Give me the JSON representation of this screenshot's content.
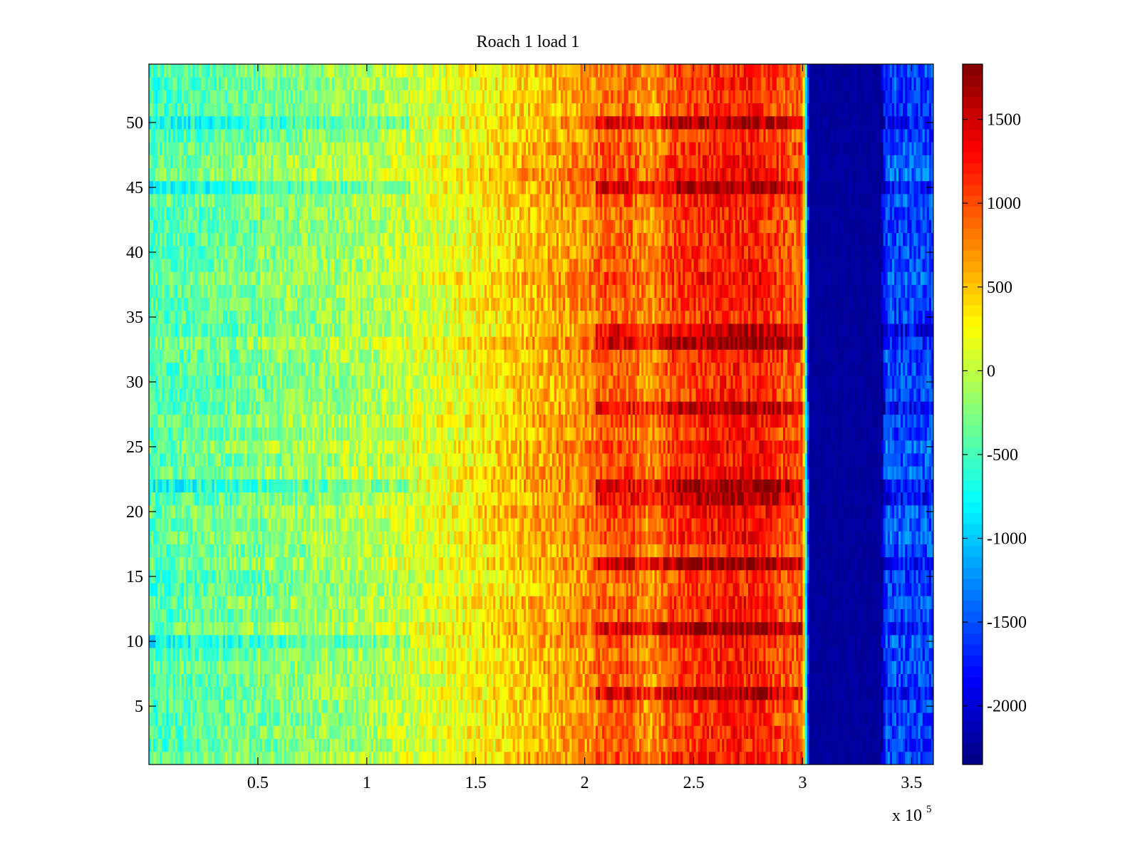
{
  "chart_data": {
    "type": "heatmap",
    "title": "Roach 1 load 1",
    "xlabel": "",
    "ylabel": "",
    "x_exponent_label": "x 10",
    "x_exponent_power": "5",
    "xlim": [
      0,
      3.6
    ],
    "ylim": [
      0.5,
      54.5
    ],
    "x_ticks": [
      {
        "value": 0.5,
        "label": "0.5"
      },
      {
        "value": 1,
        "label": "1"
      },
      {
        "value": 1.5,
        "label": "1.5"
      },
      {
        "value": 2,
        "label": "2"
      },
      {
        "value": 2.5,
        "label": "2.5"
      },
      {
        "value": 3,
        "label": "3"
      },
      {
        "value": 3.5,
        "label": "3.5"
      }
    ],
    "y_ticks": [
      {
        "value": 5,
        "label": "5"
      },
      {
        "value": 10,
        "label": "10"
      },
      {
        "value": 15,
        "label": "15"
      },
      {
        "value": 20,
        "label": "20"
      },
      {
        "value": 25,
        "label": "25"
      },
      {
        "value": 30,
        "label": "30"
      },
      {
        "value": 35,
        "label": "35"
      },
      {
        "value": 40,
        "label": "40"
      },
      {
        "value": 45,
        "label": "45"
      },
      {
        "value": 50,
        "label": "50"
      }
    ],
    "n_rows": 54,
    "colorbar": {
      "colormap": "jet",
      "clim": [
        -2350,
        1830
      ],
      "ticks": [
        {
          "value": 1500,
          "label": "1500"
        },
        {
          "value": 1000,
          "label": "1000"
        },
        {
          "value": 500,
          "label": "500"
        },
        {
          "value": 0,
          "label": "0"
        },
        {
          "value": -500,
          "label": "-500"
        },
        {
          "value": -1000,
          "label": "-1000"
        },
        {
          "value": -1500,
          "label": "-1500"
        },
        {
          "value": -2000,
          "label": "-2000"
        }
      ]
    },
    "column_profile": {
      "x": [
        0.0,
        0.25,
        0.5,
        0.75,
        1.0,
        1.25,
        1.5,
        1.75,
        2.0,
        2.1,
        2.2,
        2.3,
        2.4,
        2.5,
        2.6,
        2.7,
        2.8,
        2.9,
        3.0,
        3.03,
        3.05,
        3.2,
        3.36,
        3.38,
        3.6
      ],
      "mean_value": [
        -450,
        -350,
        -250,
        -150,
        -50,
        100,
        300,
        550,
        750,
        950,
        950,
        700,
        1050,
        1150,
        1200,
        1250,
        1250,
        1050,
        950,
        -2150,
        -2300,
        -2300,
        -2300,
        -1500,
        -1500
      ]
    },
    "strong_rows": [
      6,
      11,
      16,
      21,
      22,
      28,
      33,
      34,
      45,
      50
    ],
    "weak_rows": [
      10,
      22,
      45,
      50
    ]
  }
}
